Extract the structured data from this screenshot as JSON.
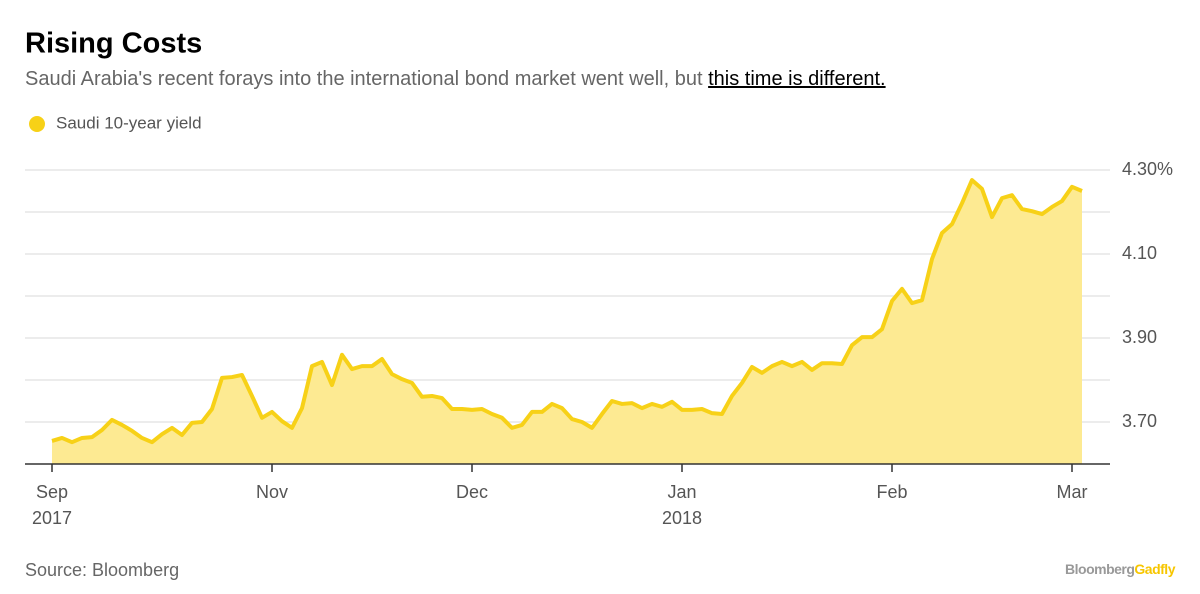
{
  "chart_data": {
    "type": "area",
    "title": "Rising Costs",
    "subtitle": "Saudi Arabia's recent forays into the international bond market went well, but ",
    "subtitle_link": "this time is different.",
    "source": "Source: Bloomberg",
    "logo": [
      "Bloomberg",
      "Gadfly"
    ],
    "categories": [
      "Sep",
      null,
      null,
      null,
      null,
      null,
      null,
      null,
      null,
      null,
      null,
      null,
      null,
      null,
      null,
      null,
      null,
      null,
      null,
      null,
      null,
      null,
      "Nov",
      null,
      null,
      null,
      null,
      null,
      null,
      null,
      null,
      null,
      null,
      null,
      null,
      null,
      null,
      null,
      null,
      null,
      null,
      null,
      "Dec",
      null,
      null,
      null,
      null,
      null,
      null,
      null,
      null,
      null,
      null,
      null,
      null,
      null,
      null,
      null,
      null,
      null,
      null,
      null,
      null,
      "Jan",
      null,
      null,
      null,
      null,
      null,
      null,
      null,
      null,
      null,
      null,
      null,
      null,
      null,
      null,
      null,
      null,
      null,
      null,
      null,
      null,
      "Feb",
      null,
      null,
      null,
      null,
      null,
      null,
      null,
      null,
      null,
      null,
      null,
      null,
      null,
      null,
      null,
      null,
      null,
      "Mar",
      null
    ],
    "years": [
      "2017",
      null,
      null,
      null,
      null,
      null,
      null,
      null,
      null,
      null,
      null,
      null,
      null,
      null,
      null,
      null,
      null,
      null,
      null,
      null,
      null,
      null,
      null,
      null,
      null,
      null,
      null,
      null,
      null,
      null,
      null,
      null,
      null,
      null,
      null,
      null,
      null,
      null,
      null,
      null,
      null,
      null,
      null,
      null,
      null,
      null,
      null,
      null,
      null,
      null,
      null,
      null,
      null,
      null,
      null,
      null,
      null,
      null,
      null,
      null,
      null,
      null,
      null,
      "2018",
      null,
      null,
      null,
      null,
      null,
      null,
      null,
      null,
      null,
      null,
      null,
      null,
      null,
      null,
      null,
      null,
      null,
      null,
      null,
      null,
      null,
      null,
      null,
      null,
      null,
      null,
      null,
      null,
      null,
      null,
      null,
      null,
      null,
      null,
      null,
      null,
      null,
      null,
      null,
      null
    ],
    "series": [
      {
        "name": "Saudi 10-year yield",
        "color": "#f7d117",
        "fill": "#fdea92",
        "values": [
          3.655,
          3.662,
          3.652,
          3.662,
          3.664,
          3.681,
          3.705,
          3.693,
          3.679,
          3.662,
          3.652,
          3.671,
          3.686,
          3.669,
          3.698,
          3.7,
          3.731,
          3.805,
          3.807,
          3.812,
          3.762,
          3.71,
          3.724,
          3.702,
          3.686,
          3.733,
          3.833,
          3.843,
          3.788,
          3.86,
          3.826,
          3.833,
          3.833,
          3.85,
          3.814,
          3.802,
          3.793,
          3.76,
          3.762,
          3.757,
          3.731,
          3.731,
          3.729,
          3.731,
          3.719,
          3.71,
          3.686,
          3.693,
          3.724,
          3.724,
          3.743,
          3.733,
          3.707,
          3.7,
          3.686,
          3.719,
          3.75,
          3.743,
          3.745,
          3.733,
          3.743,
          3.736,
          3.748,
          3.729,
          3.729,
          3.731,
          3.721,
          3.719,
          3.762,
          3.793,
          3.831,
          3.817,
          3.833,
          3.843,
          3.833,
          3.843,
          3.824,
          3.84,
          3.84,
          3.838,
          3.883,
          3.902,
          3.902,
          3.921,
          3.988,
          4.017,
          3.983,
          3.99,
          4.088,
          4.15,
          4.171,
          4.221,
          4.276,
          4.255,
          4.188,
          4.233,
          4.24,
          4.207,
          4.202,
          4.195,
          4.212,
          4.226,
          4.26,
          4.25
        ]
      }
    ],
    "ylim": [
      3.6,
      4.3
    ],
    "yticks": [
      {
        "value": 3.7,
        "label": "3.70"
      },
      {
        "value": 3.9,
        "label": "3.90"
      },
      {
        "value": 4.1,
        "label": "4.10"
      },
      {
        "value": 4.3,
        "label": "4.30%"
      }
    ],
    "ygrid": [
      3.7,
      3.8,
      3.9,
      4.0,
      4.1,
      4.2,
      4.3
    ],
    "grid": true
  }
}
